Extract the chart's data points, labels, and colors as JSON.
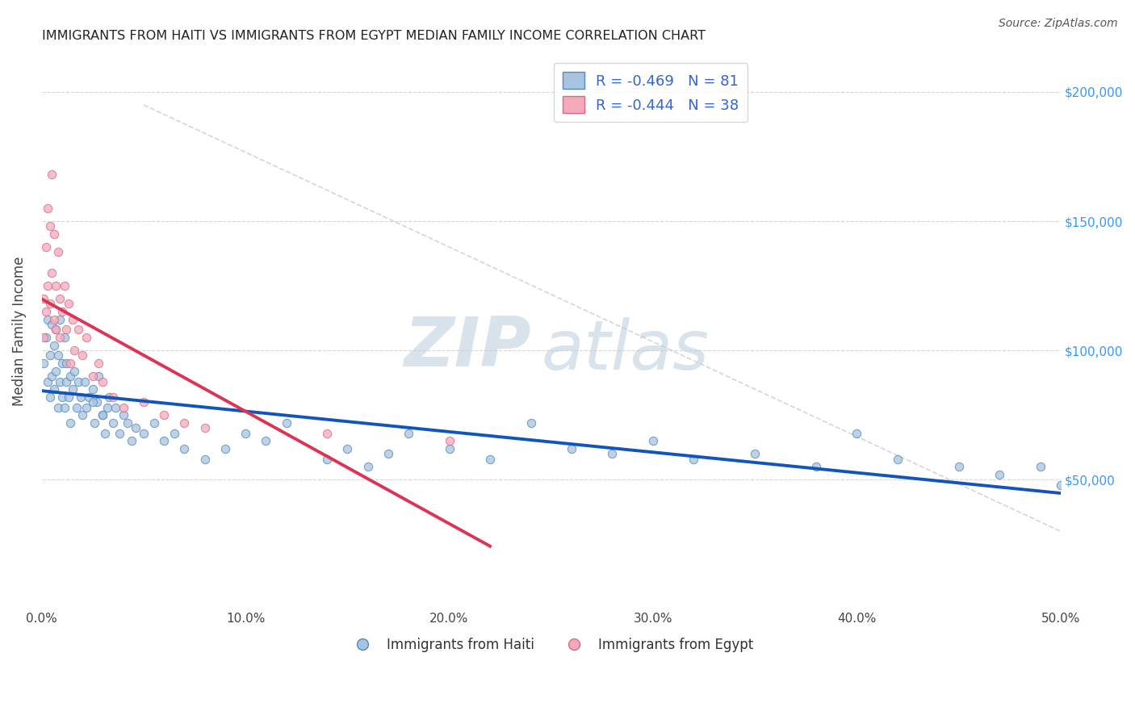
{
  "title": "IMMIGRANTS FROM HAITI VS IMMIGRANTS FROM EGYPT MEDIAN FAMILY INCOME CORRELATION CHART",
  "source_text": "Source: ZipAtlas.com",
  "ylabel": "Median Family Income",
  "xlim": [
    0.0,
    0.5
  ],
  "ylim": [
    0,
    215000
  ],
  "xtick_labels": [
    "0.0%",
    "10.0%",
    "20.0%",
    "30.0%",
    "40.0%",
    "50.0%"
  ],
  "xtick_values": [
    0.0,
    0.1,
    0.2,
    0.3,
    0.4,
    0.5
  ],
  "ytick_labels": [
    "$50,000",
    "$100,000",
    "$150,000",
    "$200,000"
  ],
  "ytick_values": [
    50000,
    100000,
    150000,
    200000
  ],
  "haiti_color": "#A8C4E0",
  "egypt_color": "#F4AABB",
  "haiti_edge_color": "#5588BB",
  "egypt_edge_color": "#DD6688",
  "haiti_trend_color": "#1155BB",
  "egypt_trend_color": "#DD3355",
  "legend_haiti_label": "R = -0.469   N = 81",
  "legend_egypt_label": "R = -0.444   N = 38",
  "watermark_zip": "ZIP",
  "watermark_atlas": "atlas",
  "watermark_color": "#BBCCDD",
  "background_color": "#FFFFFF",
  "grid_color": "#CCCCCC",
  "haiti_x": [
    0.001,
    0.002,
    0.003,
    0.003,
    0.004,
    0.004,
    0.005,
    0.005,
    0.006,
    0.006,
    0.007,
    0.007,
    0.008,
    0.008,
    0.009,
    0.009,
    0.01,
    0.01,
    0.011,
    0.011,
    0.012,
    0.012,
    0.013,
    0.014,
    0.014,
    0.015,
    0.016,
    0.017,
    0.018,
    0.019,
    0.02,
    0.021,
    0.022,
    0.023,
    0.025,
    0.026,
    0.027,
    0.028,
    0.03,
    0.031,
    0.032,
    0.033,
    0.035,
    0.036,
    0.038,
    0.04,
    0.042,
    0.044,
    0.046,
    0.05,
    0.055,
    0.06,
    0.065,
    0.07,
    0.08,
    0.09,
    0.1,
    0.11,
    0.12,
    0.14,
    0.15,
    0.16,
    0.17,
    0.18,
    0.2,
    0.22,
    0.24,
    0.26,
    0.28,
    0.3,
    0.32,
    0.35,
    0.38,
    0.4,
    0.42,
    0.45,
    0.47,
    0.49,
    0.5,
    0.025,
    0.03
  ],
  "haiti_y": [
    95000,
    105000,
    88000,
    112000,
    82000,
    98000,
    110000,
    90000,
    102000,
    85000,
    92000,
    108000,
    98000,
    78000,
    88000,
    112000,
    95000,
    82000,
    105000,
    78000,
    88000,
    95000,
    82000,
    90000,
    72000,
    85000,
    92000,
    78000,
    88000,
    82000,
    75000,
    88000,
    78000,
    82000,
    85000,
    72000,
    80000,
    90000,
    75000,
    68000,
    78000,
    82000,
    72000,
    78000,
    68000,
    75000,
    72000,
    65000,
    70000,
    68000,
    72000,
    65000,
    68000,
    62000,
    58000,
    62000,
    68000,
    65000,
    72000,
    58000,
    62000,
    55000,
    60000,
    68000,
    62000,
    58000,
    72000,
    62000,
    60000,
    65000,
    58000,
    60000,
    55000,
    68000,
    58000,
    55000,
    52000,
    55000,
    48000,
    80000,
    75000
  ],
  "egypt_x": [
    0.001,
    0.001,
    0.002,
    0.002,
    0.003,
    0.003,
    0.004,
    0.004,
    0.005,
    0.005,
    0.006,
    0.006,
    0.007,
    0.007,
    0.008,
    0.009,
    0.009,
    0.01,
    0.011,
    0.012,
    0.013,
    0.014,
    0.015,
    0.016,
    0.018,
    0.02,
    0.022,
    0.025,
    0.028,
    0.03,
    0.035,
    0.04,
    0.05,
    0.06,
    0.07,
    0.08,
    0.14,
    0.2
  ],
  "egypt_y": [
    120000,
    105000,
    140000,
    115000,
    155000,
    125000,
    148000,
    118000,
    168000,
    130000,
    145000,
    112000,
    125000,
    108000,
    138000,
    120000,
    105000,
    115000,
    125000,
    108000,
    118000,
    95000,
    112000,
    100000,
    108000,
    98000,
    105000,
    90000,
    95000,
    88000,
    82000,
    78000,
    80000,
    75000,
    72000,
    70000,
    68000,
    65000
  ],
  "ref_line_x": [
    0.05,
    0.5
  ],
  "ref_line_y": [
    195000,
    30000
  ]
}
